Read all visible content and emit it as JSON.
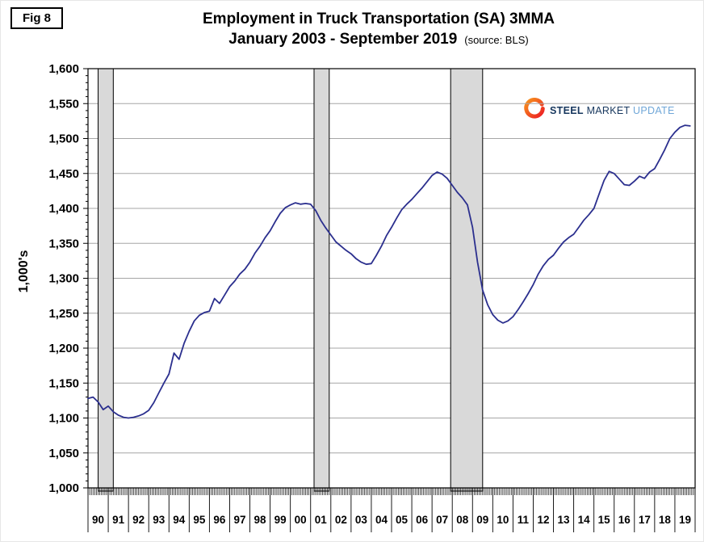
{
  "fig_label": "Fig 8",
  "title": "Employment in Truck Transportation (SA) 3MMA",
  "subtitle": "January 2003 - September 2019",
  "source_note": "(source: BLS)",
  "y_axis_title": "1,000's",
  "logo": {
    "steel": "STEEL",
    "market": "MARKET",
    "update": "UPDATE"
  },
  "colors": {
    "line": "#2b2f8e",
    "grid": "#a6a6a6",
    "recession_fill": "#d9d9d9",
    "axis": "#000000",
    "logo_dark_blue": "#17375e",
    "logo_light_blue": "#70a7d8",
    "logo_orange": "#f7941d",
    "logo_red": "#ed1c24"
  },
  "chart_data": {
    "type": "line",
    "title": "Employment in Truck Transportation (SA) 3MMA",
    "subtitle": "January 2003 - September 2019",
    "source": "(source: BLS)",
    "xlabel": "",
    "ylabel": "1,000's",
    "ylim": [
      1000,
      1600
    ],
    "y_tick_step": 50,
    "y_minor_tick_step": 10,
    "grid": true,
    "legend": "none",
    "x_range_years": [
      1990,
      2020
    ],
    "x_labels": [
      "90",
      "91",
      "92",
      "93",
      "94",
      "95",
      "96",
      "97",
      "98",
      "99",
      "00",
      "01",
      "02",
      "03",
      "04",
      "05",
      "06",
      "07",
      "08",
      "09",
      "10",
      "11",
      "12",
      "13",
      "14",
      "15",
      "16",
      "17",
      "18",
      "19"
    ],
    "recessions": [
      {
        "start": 1990.5,
        "end": 1991.25
      },
      {
        "start": 2001.17,
        "end": 2001.92
      },
      {
        "start": 2007.92,
        "end": 2009.5
      }
    ],
    "series": [
      {
        "name": "Employment in Truck Transportation (SA) 3MMA (thousands)",
        "start_year": 1990,
        "interval_years": 0.25,
        "values": [
          1128,
          1130,
          1123,
          1112,
          1117,
          1109,
          1104,
          1101,
          1100,
          1101,
          1103,
          1106,
          1111,
          1122,
          1136,
          1150,
          1163,
          1193,
          1184,
          1207,
          1224,
          1239,
          1247,
          1251,
          1253,
          1271,
          1264,
          1276,
          1288,
          1296,
          1306,
          1313,
          1323,
          1336,
          1346,
          1358,
          1368,
          1381,
          1393,
          1401,
          1405,
          1408,
          1406,
          1407,
          1406,
          1397,
          1383,
          1372,
          1362,
          1352,
          1346,
          1340,
          1335,
          1328,
          1323,
          1320,
          1321,
          1333,
          1346,
          1361,
          1373,
          1386,
          1398,
          1406,
          1413,
          1421,
          1429,
          1438,
          1447,
          1452,
          1449,
          1443,
          1433,
          1423,
          1415,
          1405,
          1373,
          1323,
          1283,
          1262,
          1248,
          1240,
          1236,
          1239,
          1245,
          1255,
          1266,
          1278,
          1291,
          1306,
          1318,
          1327,
          1333,
          1343,
          1352,
          1358,
          1363,
          1373,
          1383,
          1391,
          1400,
          1420,
          1440,
          1453,
          1450,
          1442,
          1434,
          1433,
          1439,
          1446,
          1443,
          1452,
          1457,
          1470,
          1484,
          1500,
          1509,
          1516,
          1519,
          1518
        ]
      }
    ]
  }
}
